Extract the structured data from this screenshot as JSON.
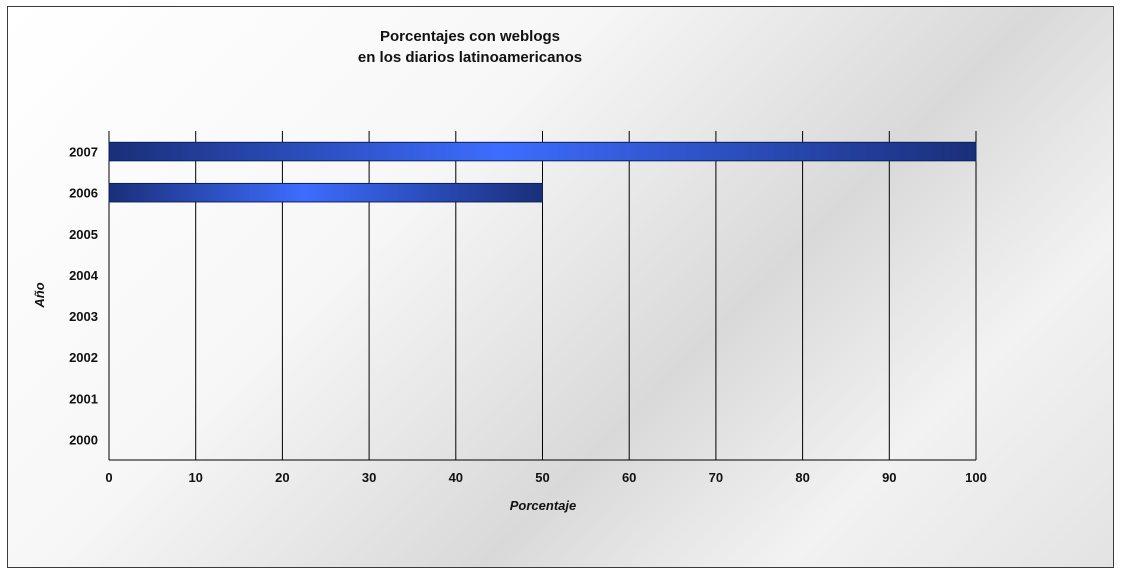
{
  "chart_data": {
    "type": "bar",
    "orientation": "horizontal",
    "title": [
      "Porcentajes con weblogs",
      "en los diarios latinoamericanos"
    ],
    "xlabel": "Porcentaje",
    "ylabel": "Año",
    "xlim": [
      0,
      100
    ],
    "x_ticks": [
      "0",
      "10",
      "20",
      "30",
      "40",
      "50",
      "60",
      "70",
      "80",
      "90",
      "100"
    ],
    "categories": [
      "2000",
      "2001",
      "2002",
      "2003",
      "2004",
      "2005",
      "2006",
      "2007"
    ],
    "values": [
      0,
      0,
      0,
      0,
      0,
      0,
      50,
      100
    ],
    "grid": true,
    "legend": "none",
    "colors": {
      "bar_edge": "#0d1f5c",
      "bar_dark": "#1a2f7a",
      "bar_light": "#3d6dff",
      "grid": "#000000"
    }
  }
}
